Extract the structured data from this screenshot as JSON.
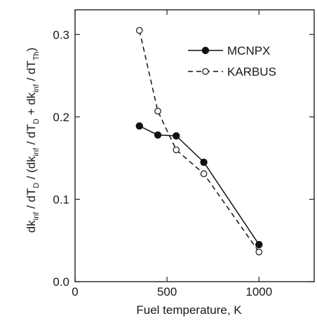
{
  "chart_data": {
    "type": "line",
    "xlabel": "Fuel temperature, K",
    "ylabel": {
      "parts": [
        {
          "t": "dk",
          "sub": false
        },
        {
          "t": "inf",
          "sub": true
        },
        {
          "t": " / dT",
          "sub": false
        },
        {
          "t": "D",
          "sub": true
        },
        {
          "t": " / (dk",
          "sub": false
        },
        {
          "t": "inf",
          "sub": true
        },
        {
          "t": " / dT",
          "sub": false
        },
        {
          "t": "D",
          "sub": true
        },
        {
          "t": " + dk",
          "sub": false
        },
        {
          "t": "inf",
          "sub": true
        },
        {
          "t": " / dT",
          "sub": false
        },
        {
          "t": "Th",
          "sub": true
        },
        {
          "t": ")",
          "sub": false
        }
      ]
    },
    "xlim": [
      0,
      1300
    ],
    "ylim": [
      0,
      0.33
    ],
    "xticks": [
      {
        "value": 0,
        "label": "0"
      },
      {
        "value": 500,
        "label": "500"
      },
      {
        "value": 1000,
        "label": "1000"
      }
    ],
    "yticks": [
      {
        "value": 0.0,
        "label": "0.0"
      },
      {
        "value": 0.1,
        "label": "0.1"
      },
      {
        "value": 0.2,
        "label": "0.2"
      },
      {
        "value": 0.3,
        "label": "0.3"
      }
    ],
    "grid": false,
    "legend_position": "top-right",
    "series": [
      {
        "name": "MCNPX",
        "style": "solid",
        "marker": "filled-circle",
        "color": "#111111",
        "x": [
          350,
          450,
          550,
          700,
          1000
        ],
        "y": [
          0.189,
          0.178,
          0.177,
          0.145,
          0.045
        ]
      },
      {
        "name": "KARBUS",
        "style": "dashed",
        "marker": "open-circle",
        "color": "#111111",
        "x": [
          350,
          450,
          550,
          700,
          1000
        ],
        "y": [
          0.305,
          0.207,
          0.16,
          0.131,
          0.036
        ]
      }
    ]
  }
}
